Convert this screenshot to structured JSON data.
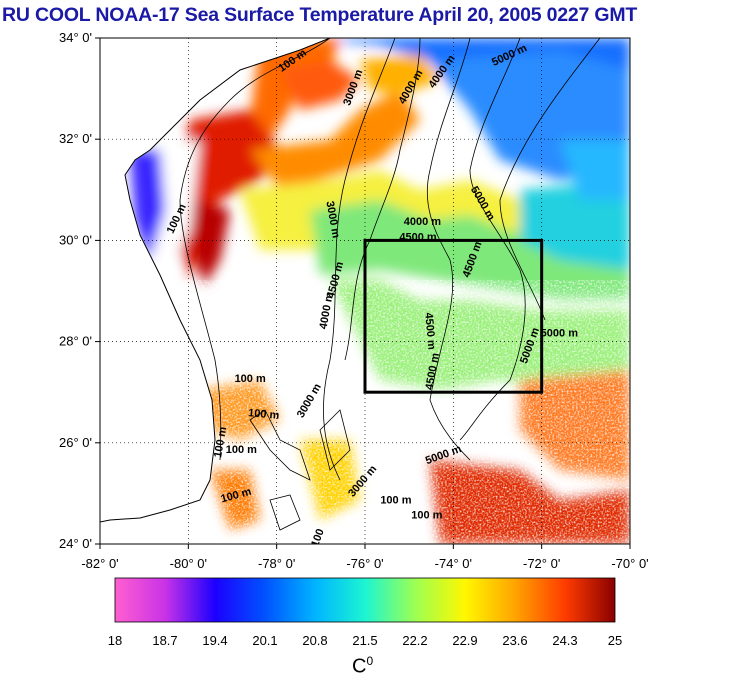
{
  "header": {
    "title": "RU COOL  NOAA-17 Sea Surface Temperature April 20, 2005 0227 GMT"
  },
  "map": {
    "lat_range": [
      24,
      34
    ],
    "lon_range": [
      -82,
      -70
    ],
    "lat_ticks": [
      "34° 0'",
      "32° 0'",
      "30° 0'",
      "28° 0'",
      "26° 0'",
      "24° 0'"
    ],
    "lon_ticks": [
      "-82° 0'",
      "-80° 0'",
      "-78° 0'",
      "-76° 0'",
      "-74° 0'",
      "-72° 0'",
      "-70° 0'"
    ],
    "study_box": {
      "lat": [
        27,
        30
      ],
      "lon": [
        -76,
        -72
      ]
    },
    "contour_labels": [
      {
        "text": "100 m",
        "lon": -77.6,
        "lat": 33.5,
        "rot": -35
      },
      {
        "text": "3000 m",
        "lon": -76.2,
        "lat": 33.0,
        "rot": -70
      },
      {
        "text": "4000 m",
        "lon": -74.9,
        "lat": 33.0,
        "rot": -60
      },
      {
        "text": "4000 m",
        "lon": -74.2,
        "lat": 33.3,
        "rot": -55
      },
      {
        "text": "5000 m",
        "lon": -72.7,
        "lat": 33.6,
        "rot": -25
      },
      {
        "text": "100 m",
        "lon": -80.2,
        "lat": 30.4,
        "rot": -65
      },
      {
        "text": "3000 m",
        "lon": -76.8,
        "lat": 30.4,
        "rot": 80
      },
      {
        "text": "4000 m",
        "lon": -74.7,
        "lat": 30.3,
        "rot": 0
      },
      {
        "text": "4500 m",
        "lon": -74.8,
        "lat": 30.0,
        "rot": 0
      },
      {
        "text": "4500 m",
        "lon": -73.5,
        "lat": 29.6,
        "rot": -70
      },
      {
        "text": "5000 m",
        "lon": -73.4,
        "lat": 30.7,
        "rot": 60
      },
      {
        "text": "4500 m",
        "lon": -76.6,
        "lat": 29.2,
        "rot": -75
      },
      {
        "text": "4000 m",
        "lon": -76.8,
        "lat": 28.6,
        "rot": -80
      },
      {
        "text": "4500 m",
        "lon": -74.6,
        "lat": 28.2,
        "rot": 85
      },
      {
        "text": "5000 m",
        "lon": -71.6,
        "lat": 28.1,
        "rot": 0
      },
      {
        "text": "5000 m",
        "lon": -72.2,
        "lat": 27.9,
        "rot": -70
      },
      {
        "text": "4500 m",
        "lon": -74.4,
        "lat": 27.4,
        "rot": -80
      },
      {
        "text": "100 m",
        "lon": -78.6,
        "lat": 27.2,
        "rot": 0
      },
      {
        "text": "100 m",
        "lon": -78.3,
        "lat": 26.5,
        "rot": 5
      },
      {
        "text": "3000 m",
        "lon": -77.2,
        "lat": 26.8,
        "rot": -60
      },
      {
        "text": "100 m",
        "lon": -79.2,
        "lat": 26.0,
        "rot": -80
      },
      {
        "text": "100 m",
        "lon": -78.8,
        "lat": 25.8,
        "rot": 0
      },
      {
        "text": "5000 m",
        "lon": -74.2,
        "lat": 25.7,
        "rot": -20
      },
      {
        "text": "3000 m",
        "lon": -76.0,
        "lat": 25.2,
        "rot": -50
      },
      {
        "text": "100 m",
        "lon": -78.9,
        "lat": 24.9,
        "rot": -15
      },
      {
        "text": "100 m",
        "lon": -75.3,
        "lat": 24.8,
        "rot": 0
      },
      {
        "text": "100 m",
        "lon": -74.6,
        "lat": 24.5,
        "rot": 0
      },
      {
        "text": "100",
        "lon": -77.0,
        "lat": 24.1,
        "rot": -70
      }
    ]
  },
  "colorbar": {
    "labels": [
      "18",
      "18.7",
      "19.4",
      "20.1",
      "20.8",
      "21.5",
      "22.2",
      "22.9",
      "23.6",
      "24.3",
      "25"
    ],
    "colors": [
      "#ff5fd0",
      "#c933e6",
      "#1c00ff",
      "#0052ff",
      "#00b4ff",
      "#1cf5d2",
      "#9cff52",
      "#fff700",
      "#ffa400",
      "#ff3c00",
      "#8a0000"
    ],
    "unit_base": "C",
    "unit_sup": "0"
  }
}
